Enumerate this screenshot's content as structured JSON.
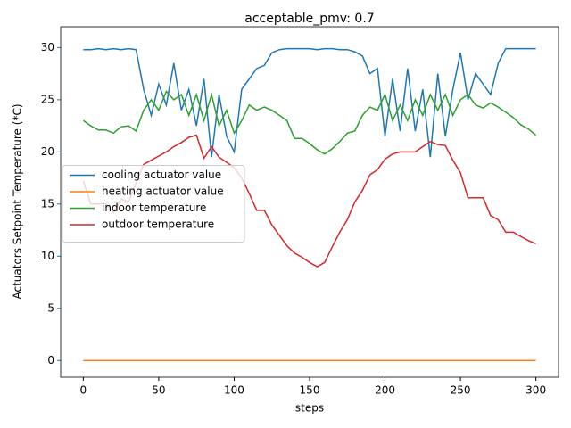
{
  "chart_data": {
    "type": "line",
    "title": "acceptable_pmv: 0.7",
    "xlabel": "steps",
    "ylabel": "Actuators Setpoint Temperature (*C)",
    "ylabel_color": "#1f77b4",
    "xlim": [
      -15,
      315
    ],
    "ylim": [
      -1.6,
      32
    ],
    "xticks": [
      0,
      50,
      100,
      150,
      200,
      250,
      300
    ],
    "yticks": [
      0,
      5,
      10,
      15,
      20,
      25,
      30
    ],
    "grid": false,
    "legend": "center left",
    "x": [
      0,
      5,
      10,
      15,
      20,
      25,
      30,
      35,
      40,
      45,
      50,
      55,
      60,
      65,
      70,
      75,
      80,
      85,
      90,
      95,
      100,
      105,
      110,
      115,
      120,
      125,
      130,
      135,
      140,
      145,
      150,
      155,
      160,
      165,
      170,
      175,
      180,
      185,
      190,
      195,
      200,
      205,
      210,
      215,
      220,
      225,
      230,
      235,
      240,
      245,
      250,
      255,
      260,
      265,
      270,
      275,
      280,
      285,
      290,
      295,
      300
    ],
    "series": [
      {
        "name": "cooling actuator value",
        "color": "#1f77b4",
        "values": [
          29.8,
          29.8,
          29.9,
          29.8,
          29.9,
          29.8,
          29.9,
          29.8,
          26,
          23.5,
          26.5,
          24.5,
          28.5,
          24,
          26,
          22.5,
          27,
          19.5,
          25.5,
          21.5,
          20,
          26,
          27,
          28,
          28.3,
          29.5,
          29.8,
          29.9,
          29.9,
          29.9,
          29.9,
          29.8,
          29.9,
          29.9,
          29.8,
          29.8,
          29.6,
          29.2,
          27.5,
          28,
          21.5,
          27,
          22,
          28,
          22,
          26,
          19.5,
          27.5,
          21.5,
          26,
          29.5,
          25,
          27.5,
          26.5,
          25.5,
          28.5,
          29.9,
          29.9,
          29.9,
          29.9,
          29.9
        ]
      },
      {
        "name": "heating actuator value",
        "color": "#ff7f0e",
        "values": [
          0,
          0,
          0,
          0,
          0,
          0,
          0,
          0,
          0,
          0,
          0,
          0,
          0,
          0,
          0,
          0,
          0,
          0,
          0,
          0,
          0,
          0,
          0,
          0,
          0,
          0,
          0,
          0,
          0,
          0,
          0,
          0,
          0,
          0,
          0,
          0,
          0,
          0,
          0,
          0,
          0,
          0,
          0,
          0,
          0,
          0,
          0,
          0,
          0,
          0,
          0,
          0,
          0,
          0,
          0,
          0,
          0,
          0,
          0,
          0,
          0
        ]
      },
      {
        "name": "indoor temperature",
        "color": "#2ca02c",
        "values": [
          23,
          22.5,
          22.1,
          22.1,
          21.8,
          22.4,
          22.5,
          22,
          24,
          25,
          24,
          25.8,
          25,
          25.5,
          23.5,
          25.5,
          23,
          25.5,
          22.5,
          24,
          21.8,
          23,
          24.5,
          24,
          24.3,
          24,
          23.5,
          23,
          21.3,
          21.3,
          20.8,
          20.2,
          19.8,
          20.3,
          21,
          21.8,
          22,
          23.5,
          24.3,
          24,
          25.5,
          23,
          24.5,
          23,
          25,
          23.5,
          25.5,
          24,
          25.5,
          23.5,
          25,
          25.5,
          24.5,
          24.2,
          24.7,
          24.3,
          23.8,
          23.3,
          22.6,
          22.2,
          21.6
        ]
      },
      {
        "name": "outdoor temperature",
        "color": "#d62728",
        "values": [
          17.2,
          15,
          15,
          15,
          14.2,
          15.5,
          15.2,
          17,
          18.8,
          19.2,
          19.6,
          20,
          20.5,
          20.9,
          21.4,
          21.6,
          19.4,
          20.5,
          19.5,
          19,
          18.5,
          17.5,
          16,
          14.4,
          14.4,
          13,
          12,
          11,
          10.3,
          9.9,
          9.4,
          9,
          9.4,
          10.9,
          12.3,
          13.5,
          15.2,
          16.3,
          17.8,
          18.3,
          19.3,
          19.8,
          20,
          20,
          20,
          20.5,
          21,
          20.7,
          20.6,
          19.2,
          18,
          15.6,
          15.6,
          15.6,
          13.9,
          13.5,
          12.3,
          12.3,
          11.9,
          11.5,
          11.2
        ]
      }
    ]
  }
}
